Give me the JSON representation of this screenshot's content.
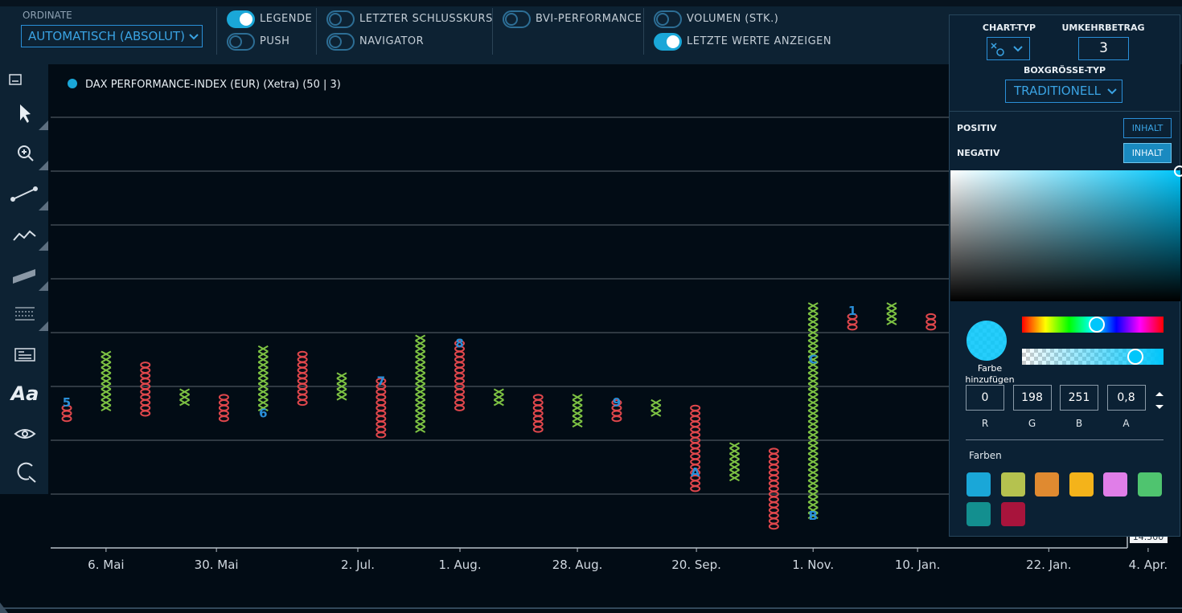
{
  "toolbar": {
    "ordinate_label": "ORDINATE",
    "ordinate_value": "AUTOMATISCH (ABSOLUT)",
    "toggles": [
      {
        "label": "LEGENDE",
        "on": true
      },
      {
        "label": "PUSH",
        "on": false
      },
      {
        "label": "LETZTER SCHLUSSKURS",
        "on": false
      },
      {
        "label": "NAVIGATOR",
        "on": false
      },
      {
        "label": "BVI-PERFORMANCE",
        "on": false
      },
      {
        "label": "VOLUMEN (STK.)",
        "on": false
      },
      {
        "label": "LETZTE WERTE ANZEIGEN",
        "on": true
      }
    ]
  },
  "sidebar": {
    "text_tool": "Aa"
  },
  "chart_data": {
    "type": "point_and_figure",
    "series": [
      {
        "name": "DAX PERFORMANCE-INDEX (EUR) (Xetra) (50 | 3)",
        "color": "#1aa7d8"
      }
    ],
    "box_size": 50,
    "x_color": "#7dc243",
    "o_color": "#e0474c",
    "month_color": "#2a8fd8",
    "columns": [
      {
        "kind": "O",
        "low": 15700,
        "high": 15800
      },
      {
        "kind": "X",
        "low": 15800,
        "high": 16300
      },
      {
        "kind": "O",
        "low": 15750,
        "high": 16200
      },
      {
        "kind": "X",
        "low": 15850,
        "high": 15950
      },
      {
        "kind": "O",
        "low": 15700,
        "high": 15900
      },
      {
        "kind": "X",
        "low": 15800,
        "high": 16350
      },
      {
        "kind": "O",
        "low": 15850,
        "high": 16300
      },
      {
        "kind": "X",
        "low": 15900,
        "high": 16100
      },
      {
        "kind": "O",
        "low": 15550,
        "high": 16050
      },
      {
        "kind": "X",
        "low": 15600,
        "high": 16450
      },
      {
        "kind": "O",
        "low": 15800,
        "high": 16400
      },
      {
        "kind": "X",
        "low": 15850,
        "high": 15950
      },
      {
        "kind": "O",
        "low": 15600,
        "high": 15900
      },
      {
        "kind": "X",
        "low": 15650,
        "high": 15900
      },
      {
        "kind": "O",
        "low": 15700,
        "high": 15850
      },
      {
        "kind": "X",
        "low": 15750,
        "high": 15850
      },
      {
        "kind": "O",
        "low": 15050,
        "high": 15800
      },
      {
        "kind": "X",
        "low": 15150,
        "high": 15450
      },
      {
        "kind": "O",
        "low": 14700,
        "high": 15400
      },
      {
        "kind": "X",
        "low": 14800,
        "high": 16750
      },
      {
        "kind": "O",
        "low": 16550,
        "high": 16650
      },
      {
        "kind": "X",
        "low": 16600,
        "high": 16750
      },
      {
        "kind": "O",
        "low": 16550,
        "high": 16650
      }
    ],
    "month_marks": [
      {
        "column": 0,
        "value": 15850,
        "label": "5"
      },
      {
        "column": 5,
        "value": 15750,
        "label": "6"
      },
      {
        "column": 8,
        "value": 16050,
        "label": "7"
      },
      {
        "column": 10,
        "value": 16400,
        "label": "8"
      },
      {
        "column": 14,
        "value": 15850,
        "label": "9"
      },
      {
        "column": 16,
        "value": 15200,
        "label": "A"
      },
      {
        "column": 19,
        "value": 14800,
        "label": "B"
      },
      {
        "column": 19,
        "value": 16250,
        "label": "C"
      },
      {
        "column": 20,
        "value": 16700,
        "label": "1"
      }
    ],
    "xlim": [
      -0.41,
      27
    ],
    "ylim": [
      14500,
      19000
    ],
    "xticks": [
      {
        "value": 1,
        "label": "6. Mai"
      },
      {
        "value": 3.81,
        "label": "30. Mai"
      },
      {
        "value": 7.41,
        "label": "2. Jul."
      },
      {
        "value": 10.01,
        "label": "1. Aug."
      },
      {
        "value": 13,
        "label": "28. Aug."
      },
      {
        "value": 16.03,
        "label": "20. Sep."
      },
      {
        "value": 19,
        "label": "1. Nov."
      },
      {
        "value": 21.66,
        "label": "10. Jan."
      },
      {
        "value": 25,
        "label": "22. Jan."
      },
      {
        "value": 27.53,
        "label": "4. Apr."
      }
    ],
    "yticks": [
      {
        "value": 14500,
        "label": "14.500"
      }
    ],
    "gridlines": [
      15000,
      15500,
      16000,
      16500,
      17000,
      17500,
      18000,
      18500
    ],
    "grid": true
  },
  "panel": {
    "chart_type_label": "CHART-TYP",
    "reversal_label": "UMKEHRBETRAG",
    "reversal_value": 3,
    "box_size_type_label": "BOXGRÖSSE-TYP",
    "box_size_type_value": "TRADITIONELL",
    "positive_label": "POSITIV",
    "positive_button": "INHALT",
    "negative_label": "NEGATIV",
    "negative_button": "INHALT",
    "add_color": "Farbe hinzufügen",
    "rgba": [
      {
        "label": "R",
        "value": 0
      },
      {
        "label": "G",
        "value": 198
      },
      {
        "label": "B",
        "value": 251
      },
      {
        "label": "A",
        "value": "0,8"
      }
    ],
    "palette_label": "Farben",
    "palette": [
      "#1aa7d8",
      "#b5c24f",
      "#e08a30",
      "#f4b31a",
      "#e07ee8",
      "#4fc46f",
      "#138f8f",
      "#a8143c"
    ]
  }
}
